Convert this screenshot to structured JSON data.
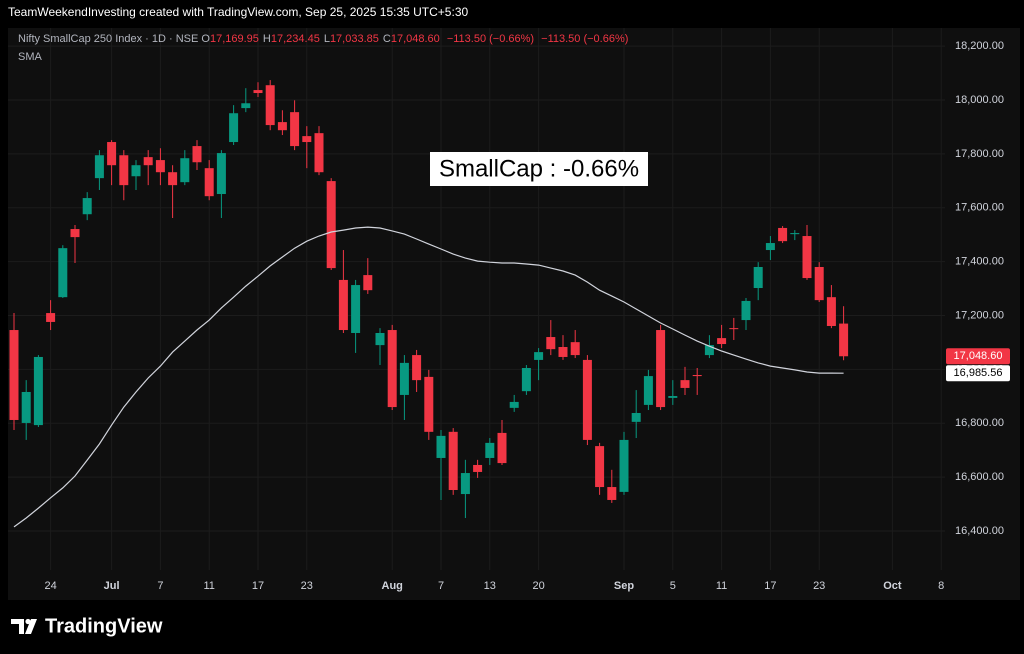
{
  "header": "TeamWeekendInvesting created with TradingView.com, Sep 25, 2025 15:35 UTC+5:30",
  "chart_data": {
    "type": "candlestick",
    "title": "Nifty SmallCap 250 Index · 1D · NSE",
    "legend_fields": [
      {
        "key": "O",
        "value": "17,169.95"
      },
      {
        "key": "H",
        "value": "17,234.45"
      },
      {
        "key": "L",
        "value": "17,033.85"
      },
      {
        "key": "C",
        "value": "17,048.60"
      }
    ],
    "change": [
      "−113.50 (−0.66%)",
      "−113.50 (−0.66%)"
    ],
    "annotation": "SmallCap : -0.66%",
    "up_color": "#089981",
    "down_color": "#f23645",
    "grid": true,
    "categories": [
      null,
      null,
      null,
      "24",
      null,
      null,
      null,
      null,
      "Jul",
      null,
      null,
      null,
      "7",
      null,
      null,
      null,
      "11",
      null,
      null,
      null,
      "17",
      null,
      null,
      null,
      "23",
      null,
      null,
      null,
      null,
      null,
      null,
      "Aug",
      null,
      null,
      null,
      "7",
      null,
      null,
      null,
      "13",
      null,
      null,
      null,
      "20",
      null,
      null,
      null,
      null,
      null,
      null,
      "Sep",
      null,
      null,
      null,
      "5",
      null,
      null,
      null,
      "11",
      null,
      null,
      null,
      "17",
      null,
      null,
      null,
      "23",
      null,
      null,
      null,
      null,
      null,
      "Oct",
      null,
      null,
      null,
      "8"
    ],
    "open": [
      17146,
      16801,
      16793,
      17209,
      17268,
      17521,
      17576,
      17710,
      17844,
      17795,
      17717,
      17788,
      17777,
      17732,
      17695,
      17829,
      17747,
      17651,
      17844,
      17970,
      18037,
      18055,
      17918,
      17955,
      17866,
      17877,
      17699,
      17332,
      17135,
      17350,
      17090,
      17146,
      16905,
      17053,
      16972,
      16671,
      16768,
      16537,
      16645,
      16671,
      16764,
      16857,
      16919,
      17035,
      17120,
      17083,
      17101,
      17035,
      16715,
      16563,
      16545,
      16805,
      16868,
      17146,
      16894,
      16960,
      16979,
      17053,
      17116,
      17153,
      17183,
      17302,
      17443,
      17525,
      17502,
      17495,
      17380,
      17268,
      17169.95,
      null,
      null,
      null,
      null,
      null,
      null,
      null,
      null
    ],
    "high": [
      17209,
      16960,
      17053,
      17257,
      17461,
      17536,
      17658,
      17814,
      17851,
      17814,
      17777,
      17814,
      17821,
      17758,
      17814,
      17851,
      17777,
      17814,
      17981,
      18044,
      18066,
      18074,
      17962,
      17999,
      17903,
      17903,
      17710,
      17443,
      17332,
      17413,
      17153,
      17165,
      17053,
      17072,
      16998,
      16775,
      16782,
      16664,
      16664,
      16745,
      16812,
      16905,
      17016,
      17079,
      17183,
      17127,
      17146,
      17053,
      16727,
      16627,
      16768,
      16923,
      16998,
      17165,
      16960,
      17009,
      17005,
      17127,
      17165,
      17191,
      17265,
      17398,
      17495,
      17532,
      17517,
      17536,
      17398,
      17313,
      17234.45,
      null,
      null,
      null,
      null,
      null,
      null,
      null,
      null
    ],
    "low": [
      16775,
      16738,
      16786,
      17146,
      17265,
      17395,
      17554,
      17666,
      17684,
      17628,
      17666,
      17684,
      17684,
      17562,
      17684,
      17740,
      17628,
      17562,
      17833,
      17955,
      18011,
      17888,
      17870,
      17814,
      17747,
      17721,
      17369,
      17135,
      17061,
      17280,
      17016,
      16849,
      16812,
      16916,
      16738,
      16515,
      16534,
      16448,
      16597,
      16645,
      16645,
      16842,
      16905,
      16960,
      17053,
      17035,
      17042,
      16719,
      16534,
      16504,
      16534,
      16745,
      16849,
      16849,
      16868,
      16905,
      16905,
      17042,
      17079,
      17109,
      17146,
      17257,
      17406,
      17469,
      17480,
      17332,
      17250,
      17153,
      17033.85,
      null,
      null,
      null,
      null,
      null,
      null,
      null,
      null
    ],
    "close": [
      16812,
      16916,
      17046,
      17176,
      17450,
      17491,
      17636,
      17795,
      17758,
      17684,
      17758,
      17758,
      17732,
      17684,
      17784,
      17769,
      17643,
      17803,
      17951,
      17988,
      18026,
      17907,
      17888,
      17829,
      17844,
      17732,
      17376,
      17146,
      17313,
      17294,
      17135,
      16860,
      17024,
      16960,
      16768,
      16753,
      16552,
      16615,
      16619,
      16727,
      16652,
      16879,
      17005,
      17064,
      17075,
      17046,
      17053,
      16738,
      16563,
      16515,
      16738,
      16838,
      16975,
      16860,
      16901,
      16931,
      16975,
      17090,
      17094,
      17150,
      17254,
      17380,
      17469,
      17476,
      17506,
      17339,
      17257,
      17161,
      17048.6,
      null,
      null,
      null,
      null,
      null,
      null,
      null,
      null
    ],
    "last_value_label": "17,048.60",
    "series": [
      {
        "name": "SMA",
        "color": "#d1d4dc",
        "last_value_label": "16,985.56",
        "values": [
          16415,
          16448,
          16485,
          16523,
          16560,
          16604,
          16663,
          16723,
          16793,
          16860,
          16916,
          16968,
          17012,
          17064,
          17105,
          17146,
          17183,
          17228,
          17268,
          17309,
          17346,
          17384,
          17417,
          17450,
          17476,
          17495,
          17510,
          17517,
          17525,
          17528,
          17525,
          17514,
          17502,
          17484,
          17465,
          17447,
          17428,
          17413,
          17402,
          17398,
          17395,
          17395,
          17391,
          17387,
          17376,
          17365,
          17350,
          17324,
          17294,
          17272,
          17250,
          17224,
          17198,
          17172,
          17150,
          17127,
          17105,
          17086,
          17068,
          17053,
          17038,
          17024,
          17012,
          17005,
          16998,
          16990,
          16986,
          16986,
          16985.56,
          null,
          null,
          null,
          null,
          null,
          null,
          null,
          null
        ]
      }
    ],
    "ylim": [
      16255,
      18260
    ],
    "yticks": [
      {
        "value": 16400,
        "label": "16,400.00"
      },
      {
        "value": 16600,
        "label": "16,600.00"
      },
      {
        "value": 16800,
        "label": "16,800.00"
      },
      {
        "value": 17000,
        "label": "17,000.00"
      },
      {
        "value": 17200,
        "label": "17,200.00"
      },
      {
        "value": 17400,
        "label": "17,400.00"
      },
      {
        "value": 17600,
        "label": "17,600.00"
      },
      {
        "value": 17800,
        "label": "17,800.00"
      },
      {
        "value": 18000,
        "label": "18,000.00"
      },
      {
        "value": 18200,
        "label": "18,200.00"
      }
    ]
  },
  "footer": {
    "logo": "TradingView"
  }
}
